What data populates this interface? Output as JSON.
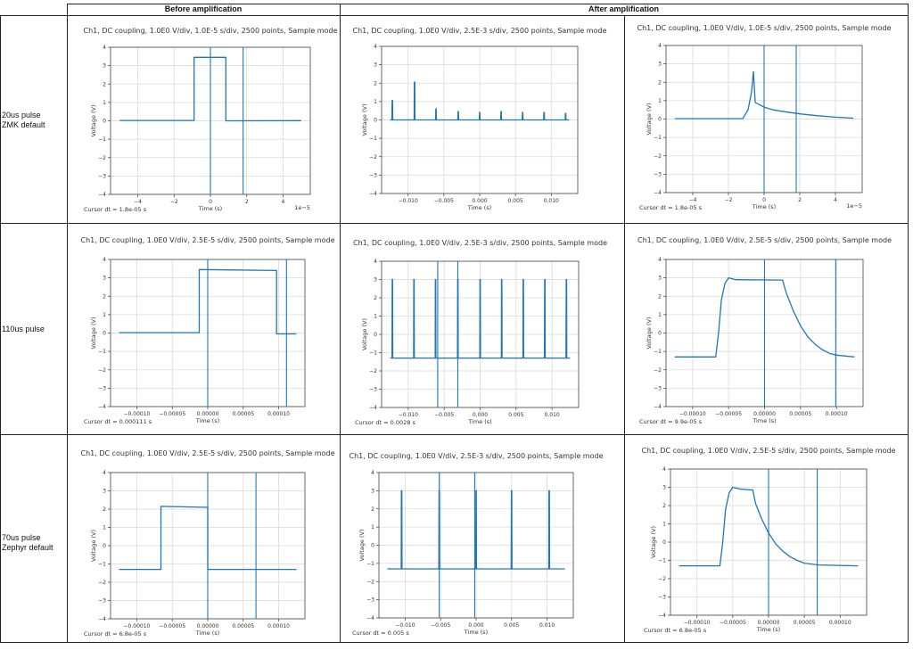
{
  "headers": {
    "before": "Before amplification",
    "after": "After amplification"
  },
  "rows": [
    {
      "label": "20us pulse\nZMK default"
    },
    {
      "label": "110us pulse"
    },
    {
      "label": "70us pulse\nZephyr default"
    }
  ],
  "colors": {
    "trace": "#1f77b4",
    "grid": "#d9d9d9",
    "border": "#222222"
  },
  "chart_data": [
    {
      "type": "line",
      "row": 0,
      "col": 0,
      "title": "Ch1, DC coupling, 1.0E0 V/div, 1.0E-5 s/div, 2500 points, Sample mode",
      "xlabel": "Time (s)",
      "ylabel": "Voltage (V)",
      "x_offset_label": "1e−5",
      "xlim": [
        -5.5,
        5.5
      ],
      "ylim": [
        -4,
        4
      ],
      "xticks": [
        -4,
        -2,
        0,
        2,
        4
      ],
      "xtick_labels": [
        "−4",
        "−2",
        "0",
        "2",
        "4"
      ],
      "yticks": [
        -4,
        -3,
        -2,
        -1,
        0,
        1,
        2,
        3,
        4
      ],
      "ytick_labels": [
        "−4",
        "−3",
        "−2",
        "−1",
        "0",
        "1",
        "2",
        "3",
        "4"
      ],
      "points": [
        [
          -5,
          0.02
        ],
        [
          -0.9,
          0.02
        ],
        [
          -0.9,
          3.45
        ],
        [
          0.85,
          3.45
        ],
        [
          0.85,
          0
        ],
        [
          5,
          0.01
        ]
      ],
      "cursors": [
        0,
        1.8
      ],
      "cursor_dt": "Cursor dt = 1.8e-05 s"
    },
    {
      "type": "line",
      "row": 0,
      "col": 1,
      "title": "Ch1, DC coupling, 1.0E0 V/div, 2.5E-3 s/div, 2500 points, Sample mode",
      "xlabel": "Time (s)",
      "ylabel": "Voltage (V)",
      "x_offset_label": "",
      "xlim": [
        -0.0137,
        0.0137
      ],
      "ylim": [
        -4,
        4
      ],
      "xticks": [
        -0.01,
        -0.005,
        0,
        0.005,
        0.01
      ],
      "xtick_labels": [
        "−0.010",
        "−0.005",
        "0.000",
        "0.005",
        "0.010"
      ],
      "yticks": [
        -4,
        -3,
        -2,
        -1,
        0,
        1,
        2,
        3,
        4
      ],
      "ytick_labels": [
        "−4",
        "−3",
        "−2",
        "−1",
        "0",
        "1",
        "2",
        "3",
        "4"
      ],
      "baseline": 0,
      "x_start": -0.0125,
      "x_end": 0.0125,
      "spikes": [
        [
          -0.0122,
          1.05
        ],
        [
          -0.0091,
          2.05
        ],
        [
          -0.0061,
          0.6
        ],
        [
          -0.003,
          0.45
        ],
        [
          0,
          0.4
        ],
        [
          0.003,
          0.45
        ],
        [
          0.006,
          0.4
        ],
        [
          0.009,
          0.4
        ],
        [
          0.012,
          0.35
        ]
      ],
      "cursors": [],
      "cursor_dt": ""
    },
    {
      "type": "line",
      "row": 0,
      "col": 2,
      "title": "Ch1, DC coupling, 1.0E0 V/div, 1.0E-5 s/div, 2500 points, Sample mode",
      "xlabel": "Time (s)",
      "ylabel": "Voltage (V)",
      "x_offset_label": "1e−5",
      "xlim": [
        -5.5,
        5.5
      ],
      "ylim": [
        -4,
        4
      ],
      "xticks": [
        -4,
        -2,
        0,
        2,
        4
      ],
      "xtick_labels": [
        "−4",
        "−2",
        "0",
        "2",
        "4"
      ],
      "yticks": [
        -4,
        -3,
        -2,
        -1,
        0,
        1,
        2,
        3,
        4
      ],
      "ytick_labels": [
        "−4",
        "−3",
        "−2",
        "−1",
        "0",
        "1",
        "2",
        "3",
        "4"
      ],
      "points": [
        [
          -5,
          0.02
        ],
        [
          -1.2,
          0.02
        ],
        [
          -0.9,
          0.5
        ],
        [
          -0.7,
          1.5
        ],
        [
          -0.6,
          2.6
        ],
        [
          -0.5,
          0.9
        ],
        [
          0,
          0.65
        ],
        [
          0.5,
          0.5
        ],
        [
          1,
          0.42
        ],
        [
          1.5,
          0.35
        ],
        [
          2,
          0.28
        ],
        [
          3,
          0.18
        ],
        [
          4,
          0.1
        ],
        [
          5,
          0.05
        ]
      ],
      "cursors": [
        0,
        1.8
      ],
      "cursor_dt": "Cursor dt = 1.8e-05 s"
    },
    {
      "type": "line",
      "row": 1,
      "col": 0,
      "title": "Ch1, DC coupling, 1.0E0 V/div, 2.5E-5 s/div, 2500 points, Sample mode",
      "xlabel": "Time (s)",
      "ylabel": "Voltage (V)",
      "x_offset_label": "",
      "xlim": [
        -0.000137,
        0.000137
      ],
      "ylim": [
        -4,
        4
      ],
      "xticks": [
        -0.0001,
        -5e-05,
        0,
        5e-05,
        0.0001
      ],
      "xtick_labels": [
        "−0.00010",
        "−0.00005",
        "0.00000",
        "0.00005",
        "0.00010"
      ],
      "yticks": [
        -4,
        -3,
        -2,
        -1,
        0,
        1,
        2,
        3,
        4
      ],
      "ytick_labels": [
        "−4",
        "−3",
        "−2",
        "−1",
        "0",
        "1",
        "2",
        "3",
        "4"
      ],
      "points": [
        [
          -0.000125,
          0.02
        ],
        [
          -1.2e-05,
          0.02
        ],
        [
          -1.2e-05,
          3.45
        ],
        [
          9.7e-05,
          3.4
        ],
        [
          9.7e-05,
          -0.05
        ],
        [
          0.000125,
          -0.05
        ]
      ],
      "cursors": [
        0,
        0.000111
      ],
      "cursor_dt": "Cursor dt = 0.000111 s"
    },
    {
      "type": "line",
      "row": 1,
      "col": 1,
      "title": "Ch1, DC coupling, 1.0E0 V/div, 2.5E-3 s/div, 2500 points, Sample mode",
      "xlabel": "Time (s)",
      "ylabel": "Voltage (V)",
      "x_offset_label": "",
      "xlim": [
        -0.0137,
        0.0137
      ],
      "ylim": [
        -4,
        4
      ],
      "xticks": [
        -0.01,
        -0.005,
        0,
        0.005,
        0.01
      ],
      "xtick_labels": [
        "−0.010",
        "−0.005",
        "0.000",
        "0.005",
        "0.010"
      ],
      "yticks": [
        -4,
        -3,
        -2,
        -1,
        0,
        1,
        2,
        3,
        4
      ],
      "ytick_labels": [
        "−4",
        "−3",
        "−2",
        "−1",
        "0",
        "1",
        "2",
        "3",
        "4"
      ],
      "baseline": -1.3,
      "x_start": -0.0125,
      "x_end": 0.0125,
      "spikes": [
        [
          -0.0122,
          3
        ],
        [
          -0.0092,
          3
        ],
        [
          -0.0062,
          3
        ],
        [
          -0.0031,
          3
        ],
        [
          0,
          3
        ],
        [
          0.003,
          3
        ],
        [
          0.006,
          3
        ],
        [
          0.009,
          3
        ],
        [
          0.012,
          3
        ]
      ],
      "cursors": [
        -0.0059,
        -0.0031
      ],
      "cursor_dt": "Cursor dt = 0.0028 s"
    },
    {
      "type": "line",
      "row": 1,
      "col": 2,
      "title": "Ch1, DC coupling, 1.0E0 V/div, 2.5E-5 s/div, 2500 points, Sample mode",
      "xlabel": "Time (s)",
      "ylabel": "Voltage (V)",
      "x_offset_label": "",
      "xlim": [
        -0.000137,
        0.000137
      ],
      "ylim": [
        -4,
        4
      ],
      "xticks": [
        -0.0001,
        -5e-05,
        0,
        5e-05,
        0.0001
      ],
      "xtick_labels": [
        "−0.00010",
        "−0.00005",
        "0.00000",
        "0.00005",
        "0.00010"
      ],
      "yticks": [
        -4,
        -3,
        -2,
        -1,
        0,
        1,
        2,
        3,
        4
      ],
      "ytick_labels": [
        "−4",
        "−3",
        "−2",
        "−1",
        "0",
        "1",
        "2",
        "3",
        "4"
      ],
      "points": [
        [
          -0.000125,
          -1.3
        ],
        [
          -6.8e-05,
          -1.3
        ],
        [
          -6.4e-05,
          0
        ],
        [
          -6e-05,
          1.8
        ],
        [
          -5.5e-05,
          2.7
        ],
        [
          -5e-05,
          3.0
        ],
        [
          -4e-05,
          2.9
        ],
        [
          2.5e-05,
          2.88
        ],
        [
          3e-05,
          2.2
        ],
        [
          4e-05,
          1.2
        ],
        [
          5e-05,
          0.4
        ],
        [
          6e-05,
          -0.2
        ],
        [
          7e-05,
          -0.6
        ],
        [
          8e-05,
          -0.9
        ],
        [
          9e-05,
          -1.1
        ],
        [
          0.0001,
          -1.2
        ],
        [
          0.000125,
          -1.3
        ]
      ],
      "cursors": [
        0,
        9.9e-05
      ],
      "cursor_dt": "Cursor dt = 9.9e-05 s"
    },
    {
      "type": "line",
      "row": 2,
      "col": 0,
      "title": "Ch1, DC coupling, 1.0E0 V/div, 2.5E-5 s/div, 2500 points, Sample mode",
      "xlabel": "Time (s)",
      "ylabel": "Voltage (V)",
      "x_offset_label": "",
      "xlim": [
        -0.000137,
        0.000137
      ],
      "ylim": [
        -4,
        4
      ],
      "xticks": [
        -0.0001,
        -5e-05,
        0,
        5e-05,
        0.0001
      ],
      "xtick_labels": [
        "−0.00010",
        "−0.00005",
        "0.00000",
        "0.00005",
        "0.00010"
      ],
      "yticks": [
        -4,
        -3,
        -2,
        -1,
        0,
        1,
        2,
        3,
        4
      ],
      "ytick_labels": [
        "−4",
        "−3",
        "−2",
        "−1",
        "0",
        "1",
        "2",
        "3",
        "4"
      ],
      "points": [
        [
          -0.000125,
          -1.3
        ],
        [
          -6.6e-05,
          -1.3
        ],
        [
          -6.6e-05,
          2.15
        ],
        [
          0,
          2.1
        ],
        [
          0,
          -1.3
        ],
        [
          0.000125,
          -1.3
        ]
      ],
      "cursors": [
        0,
        6.8e-05
      ],
      "cursor_dt": "Cursor dt = 6.8e-05 s"
    },
    {
      "type": "line",
      "row": 2,
      "col": 1,
      "title": "Ch1, DC coupling, 1.0E0 V/div, 2.5E-3 s/div, 2500 points, Sample mode",
      "xlabel": "Time (s)",
      "ylabel": "Voltage (V)",
      "x_offset_label": "",
      "xlim": [
        -0.0137,
        0.0137
      ],
      "ylim": [
        -4,
        4
      ],
      "xticks": [
        -0.01,
        -0.005,
        0,
        0.005,
        0.01
      ],
      "xtick_labels": [
        "−0.010",
        "−0.005",
        "0.000",
        "0.005",
        "0.010"
      ],
      "yticks": [
        -4,
        -3,
        -2,
        -1,
        0,
        1,
        2,
        3,
        4
      ],
      "ytick_labels": [
        "−4",
        "−3",
        "−2",
        "−1",
        "0",
        "1",
        "2",
        "3",
        "4"
      ],
      "baseline": -1.3,
      "x_start": -0.0125,
      "x_end": 0.0125,
      "spikes": [
        [
          -0.0105,
          3
        ],
        [
          -0.0052,
          3
        ],
        [
          0,
          3
        ],
        [
          0.005,
          3
        ],
        [
          0.0103,
          3
        ]
      ],
      "cursors": [
        -0.0052,
        -0.0002
      ],
      "cursor_dt": "Cursor dt = 0.005 s"
    },
    {
      "type": "line",
      "row": 2,
      "col": 2,
      "title": "Ch1, DC coupling, 1.0E0 V/div, 2.5E-5 s/div, 2500 points, Sample mode",
      "xlabel": "Time (s)",
      "ylabel": "Voltage (V)",
      "x_offset_label": "",
      "xlim": [
        -0.000137,
        0.000137
      ],
      "ylim": [
        -4,
        4
      ],
      "xticks": [
        -0.0001,
        -5e-05,
        0,
        5e-05,
        0.0001
      ],
      "xtick_labels": [
        "−0.00010",
        "−0.00005",
        "0.00000",
        "0.00005",
        "0.00010"
      ],
      "yticks": [
        -4,
        -3,
        -2,
        -1,
        0,
        1,
        2,
        3,
        4
      ],
      "ytick_labels": [
        "−4",
        "−3",
        "−2",
        "−1",
        "0",
        "1",
        "2",
        "3",
        "4"
      ],
      "points": [
        [
          -0.000125,
          -1.3
        ],
        [
          -6.8e-05,
          -1.3
        ],
        [
          -6.4e-05,
          0
        ],
        [
          -6e-05,
          1.8
        ],
        [
          -5.5e-05,
          2.7
        ],
        [
          -5e-05,
          3.0
        ],
        [
          -4e-05,
          2.9
        ],
        [
          -2.2e-05,
          2.85
        ],
        [
          -1.8e-05,
          2.1
        ],
        [
          -1e-05,
          1.3
        ],
        [
          0,
          0.5
        ],
        [
          1e-05,
          -0.1
        ],
        [
          2e-05,
          -0.5
        ],
        [
          3e-05,
          -0.8
        ],
        [
          4e-05,
          -1.0
        ],
        [
          5e-05,
          -1.15
        ],
        [
          7e-05,
          -1.25
        ],
        [
          0.000125,
          -1.3
        ]
      ],
      "cursors": [
        0,
        6.8e-05
      ],
      "cursor_dt": "Cursor dt = 6.8e-05 s"
    }
  ]
}
